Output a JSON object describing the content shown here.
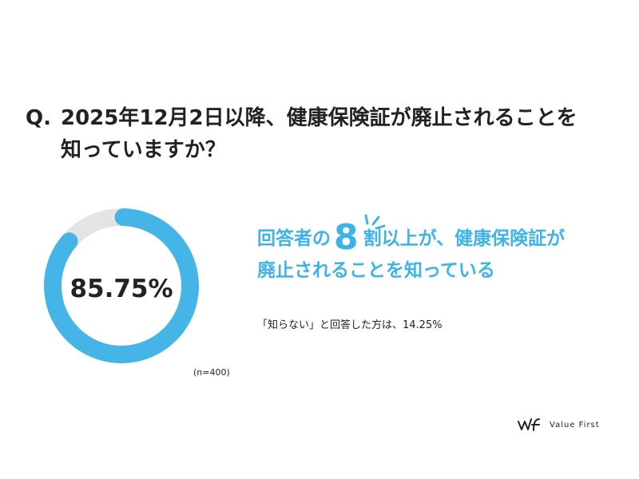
{
  "question": {
    "prefix": "Q.",
    "line1": "2025年12月2日以降、健康保険証が廃止されることを",
    "line2": "知っていますか？"
  },
  "chart_data": {
    "type": "pie",
    "style": "donut",
    "center_label": "85.75%",
    "slices": [
      {
        "label": "知っている",
        "value": 85.75,
        "color": "#45b5e8"
      },
      {
        "label": "知らない",
        "value": 14.25,
        "color": "#e4e4e4"
      }
    ],
    "sample_note": "(n=400)"
  },
  "headline": {
    "part1": "回答者の",
    "number": "8",
    "part2": "割以上が、健康保険証が",
    "line2": "廃止されることを知っている"
  },
  "sub_note": "「知らない」と回答した方は、14.25%",
  "logo": {
    "text": "Value First",
    "icon": "value-first-logo-icon"
  },
  "colors": {
    "accent": "#3eb3e8",
    "ring": "#45b5e8",
    "ring_rest": "#e4e4e4",
    "text": "#222222"
  }
}
